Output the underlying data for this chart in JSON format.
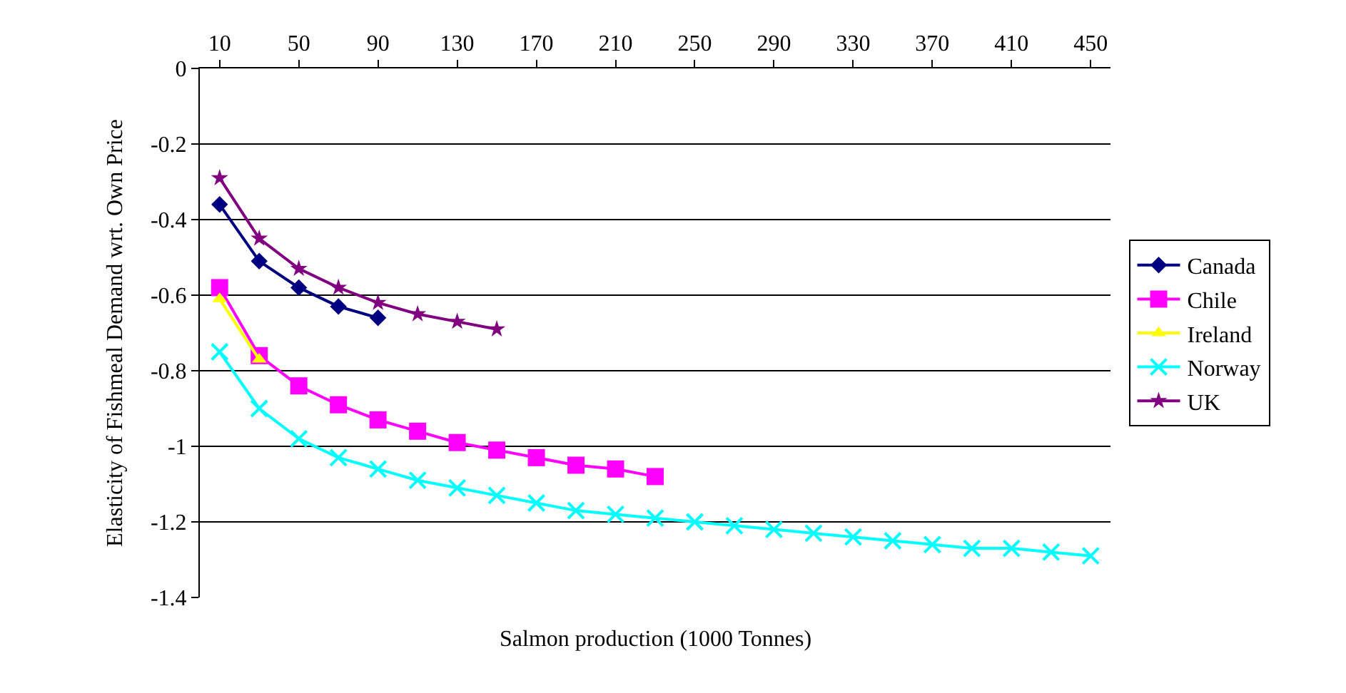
{
  "chart_data": {
    "type": "line",
    "xlabel": "Salmon production (1000 Tonnes)",
    "ylabel": "Elasticity of Fishmeal Demand wrt. Own Price",
    "xlim": [
      0,
      460
    ],
    "xticks": [
      10,
      50,
      90,
      130,
      170,
      210,
      250,
      290,
      330,
      370,
      410,
      450
    ],
    "ylim": [
      -1.4,
      0
    ],
    "yticks": [
      0,
      -0.2,
      -0.4,
      -0.6,
      -0.8,
      -1,
      -1.2,
      -1.4
    ],
    "grid": "y",
    "legend": "right",
    "line_style": "solid",
    "series": [
      {
        "name": "Canada",
        "color": "#000080",
        "marker": "diamond",
        "x": [
          10,
          30,
          50,
          70,
          90
        ],
        "values": [
          -0.36,
          -0.51,
          -0.58,
          -0.63,
          -0.66
        ]
      },
      {
        "name": "Chile",
        "color": "#ff00ff",
        "marker": "square",
        "x": [
          10,
          30,
          50,
          70,
          90,
          110,
          130,
          150,
          170,
          190,
          210,
          230
        ],
        "values": [
          -0.58,
          -0.76,
          -0.84,
          -0.89,
          -0.93,
          -0.96,
          -0.99,
          -1.01,
          -1.03,
          -1.05,
          -1.06,
          -1.08
        ]
      },
      {
        "name": "Ireland",
        "color": "#ffff00",
        "marker": "triangle",
        "x": [
          10,
          30
        ],
        "values": [
          -0.61,
          -0.77
        ]
      },
      {
        "name": "Norway",
        "color": "#00ffff",
        "marker": "cross",
        "x": [
          10,
          30,
          50,
          70,
          90,
          110,
          130,
          150,
          170,
          190,
          210,
          230,
          250,
          270,
          290,
          310,
          330,
          350,
          370,
          390,
          410,
          430,
          450
        ],
        "values": [
          -0.75,
          -0.9,
          -0.98,
          -1.03,
          -1.06,
          -1.09,
          -1.11,
          -1.13,
          -1.15,
          -1.17,
          -1.18,
          -1.19,
          -1.2,
          -1.21,
          -1.22,
          -1.23,
          -1.24,
          -1.25,
          -1.26,
          -1.27,
          -1.27,
          -1.28,
          -1.29
        ]
      },
      {
        "name": "UK",
        "color": "#800080",
        "marker": "star",
        "x": [
          10,
          30,
          50,
          70,
          90,
          110,
          130,
          150
        ],
        "values": [
          -0.29,
          -0.45,
          -0.53,
          -0.58,
          -0.62,
          -0.65,
          -0.67,
          -0.69
        ]
      }
    ]
  }
}
